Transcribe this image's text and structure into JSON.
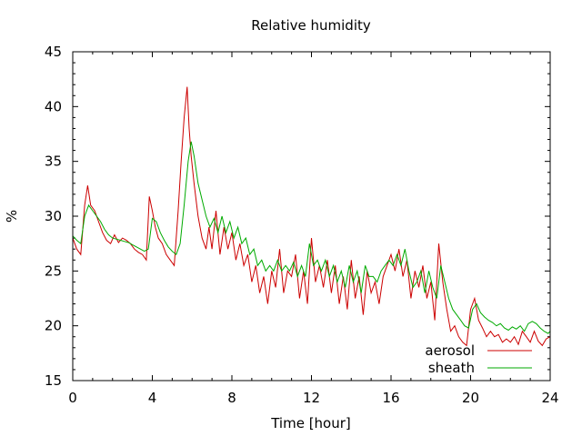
{
  "chart_data": {
    "type": "line",
    "title": "Relative humidity",
    "xlabel": "Time [hour]",
    "ylabel": "%",
    "xlim": [
      0,
      24
    ],
    "ylim": [
      15,
      45
    ],
    "xticks": [
      0,
      4,
      8,
      12,
      16,
      20,
      24
    ],
    "yticks": [
      15,
      20,
      25,
      30,
      35,
      40,
      45
    ],
    "grid": false,
    "legend_position": "bottom-right",
    "series": [
      {
        "name": "aerosol",
        "color": "#cc0000",
        "x": [
          0,
          0.2,
          0.4,
          0.6,
          0.75,
          0.9,
          1.1,
          1.3,
          1.5,
          1.7,
          1.9,
          2.1,
          2.3,
          2.5,
          2.7,
          2.9,
          3.1,
          3.3,
          3.5,
          3.7,
          3.85,
          4.0,
          4.15,
          4.3,
          4.5,
          4.7,
          4.9,
          5.1,
          5.3,
          5.45,
          5.6,
          5.75,
          5.85,
          5.95,
          6.1,
          6.3,
          6.5,
          6.7,
          6.85,
          7.0,
          7.2,
          7.4,
          7.6,
          7.8,
          8.0,
          8.2,
          8.4,
          8.6,
          8.8,
          9.0,
          9.2,
          9.4,
          9.6,
          9.8,
          10.0,
          10.2,
          10.4,
          10.6,
          10.8,
          11.0,
          11.2,
          11.4,
          11.6,
          11.8,
          12.0,
          12.2,
          12.4,
          12.6,
          12.8,
          13.0,
          13.2,
          13.4,
          13.6,
          13.8,
          14.0,
          14.2,
          14.4,
          14.6,
          14.8,
          15.0,
          15.2,
          15.4,
          15.6,
          15.8,
          16.0,
          16.2,
          16.4,
          16.6,
          16.8,
          17.0,
          17.2,
          17.4,
          17.6,
          17.8,
          18.0,
          18.2,
          18.4,
          18.6,
          18.8,
          19.0,
          19.2,
          19.4,
          19.6,
          19.8,
          20.0,
          20.2,
          20.4,
          20.6,
          20.8,
          21.0,
          21.2,
          21.4,
          21.6,
          21.8,
          22.0,
          22.2,
          22.4,
          22.6,
          22.8,
          23.0,
          23.2,
          23.4,
          23.6,
          23.8,
          24.0
        ],
        "y": [
          28.0,
          27.0,
          26.5,
          31.0,
          32.8,
          31.0,
          30.5,
          29.5,
          28.5,
          27.8,
          27.5,
          28.3,
          27.6,
          28.0,
          27.8,
          27.5,
          27.0,
          26.7,
          26.5,
          26.0,
          31.8,
          30.5,
          29.0,
          28.0,
          27.5,
          26.5,
          26.0,
          25.5,
          30.5,
          35.0,
          39.0,
          41.8,
          38.0,
          35.5,
          33.0,
          30.0,
          28.0,
          27.0,
          29.0,
          27.0,
          30.5,
          26.5,
          29.0,
          27.0,
          28.5,
          26.0,
          27.5,
          25.5,
          26.5,
          24.0,
          25.5,
          23.0,
          24.5,
          22.0,
          25.0,
          23.5,
          27.0,
          23.0,
          25.0,
          24.5,
          26.5,
          22.5,
          25.0,
          22.0,
          28.0,
          24.0,
          25.5,
          23.5,
          26.0,
          23.0,
          25.5,
          22.0,
          24.5,
          21.5,
          26.0,
          22.5,
          24.5,
          21.0,
          25.0,
          23.0,
          24.0,
          22.0,
          24.5,
          25.5,
          26.5,
          25.0,
          27.0,
          24.5,
          26.0,
          22.5,
          25.0,
          23.5,
          25.5,
          22.5,
          24.0,
          20.5,
          27.5,
          24.0,
          21.5,
          19.5,
          20.0,
          19.0,
          18.5,
          18.2,
          21.5,
          22.5,
          20.5,
          19.8,
          19.0,
          19.5,
          19.0,
          19.2,
          18.5,
          18.8,
          18.5,
          19.0,
          18.3,
          19.5,
          19.0,
          18.5,
          19.5,
          18.6,
          18.2,
          18.8,
          19.0
        ]
      },
      {
        "name": "sheath",
        "color": "#00aa00",
        "x": [
          0,
          0.2,
          0.4,
          0.6,
          0.8,
          1.0,
          1.2,
          1.4,
          1.6,
          1.8,
          2.0,
          2.2,
          2.4,
          2.6,
          2.8,
          3.0,
          3.2,
          3.4,
          3.6,
          3.8,
          4.0,
          4.2,
          4.4,
          4.6,
          4.8,
          5.0,
          5.2,
          5.4,
          5.6,
          5.8,
          5.95,
          6.1,
          6.3,
          6.5,
          6.7,
          6.9,
          7.1,
          7.3,
          7.5,
          7.7,
          7.9,
          8.1,
          8.3,
          8.5,
          8.7,
          8.9,
          9.1,
          9.3,
          9.5,
          9.7,
          9.9,
          10.1,
          10.3,
          10.5,
          10.7,
          10.9,
          11.1,
          11.3,
          11.5,
          11.7,
          11.9,
          12.1,
          12.3,
          12.5,
          12.7,
          12.9,
          13.1,
          13.3,
          13.5,
          13.7,
          13.9,
          14.1,
          14.3,
          14.5,
          14.7,
          14.9,
          15.1,
          15.3,
          15.5,
          15.7,
          15.9,
          16.1,
          16.3,
          16.5,
          16.7,
          16.9,
          17.1,
          17.3,
          17.5,
          17.7,
          17.9,
          18.1,
          18.3,
          18.5,
          18.7,
          18.9,
          19.1,
          19.3,
          19.5,
          19.7,
          19.9,
          20.1,
          20.3,
          20.5,
          20.7,
          20.9,
          21.1,
          21.3,
          21.5,
          21.7,
          21.9,
          22.1,
          22.3,
          22.5,
          22.7,
          22.9,
          23.1,
          23.3,
          23.5,
          23.7,
          23.9,
          24.0
        ],
        "y": [
          28.2,
          27.8,
          27.5,
          30.0,
          31.0,
          30.5,
          30.0,
          29.5,
          28.8,
          28.3,
          28.0,
          27.9,
          27.8,
          27.7,
          27.6,
          27.4,
          27.2,
          27.0,
          26.8,
          27.0,
          29.8,
          29.5,
          28.5,
          27.8,
          27.2,
          26.8,
          26.5,
          27.5,
          31.0,
          35.0,
          36.8,
          35.5,
          33.0,
          31.5,
          30.0,
          29.0,
          29.8,
          28.5,
          30.0,
          28.5,
          29.5,
          28.0,
          29.0,
          27.5,
          28.0,
          26.5,
          27.0,
          25.5,
          26.0,
          25.0,
          25.5,
          25.0,
          26.0,
          25.0,
          25.5,
          25.0,
          25.8,
          24.5,
          25.5,
          24.5,
          27.5,
          25.5,
          26.0,
          25.0,
          26.0,
          24.5,
          25.5,
          24.0,
          25.0,
          23.5,
          25.5,
          24.0,
          25.0,
          23.0,
          25.5,
          24.5,
          24.5,
          24.0,
          25.0,
          25.5,
          26.0,
          25.5,
          26.5,
          25.5,
          27.0,
          25.0,
          23.5,
          24.0,
          25.0,
          23.0,
          25.0,
          23.5,
          22.5,
          25.5,
          24.0,
          22.5,
          21.5,
          21.0,
          20.5,
          20.0,
          19.8,
          21.5,
          22.0,
          21.2,
          20.8,
          20.5,
          20.3,
          20.0,
          20.2,
          19.8,
          19.6,
          19.9,
          19.7,
          20.0,
          19.5,
          20.2,
          20.4,
          20.2,
          19.8,
          19.5,
          19.3,
          19.5
        ]
      }
    ]
  }
}
